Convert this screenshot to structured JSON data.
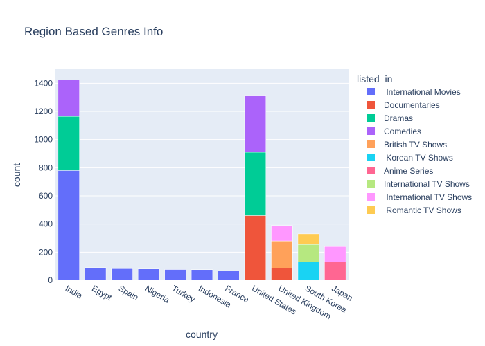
{
  "chart_data": {
    "type": "bar",
    "barmode": "stack",
    "title": "Region Based Genres Info",
    "xlabel": "country",
    "ylabel": "count",
    "ylim": [
      0,
      1500
    ],
    "yticks": [
      0,
      200,
      400,
      600,
      800,
      1000,
      1200,
      1400
    ],
    "grid": true,
    "legend_title": "listed_in",
    "legend_position": "right",
    "categories": [
      "India",
      "Egypt",
      "Spain",
      "Nigeria",
      "Turkey",
      "Indonesia",
      "France",
      "United States",
      "United Kingdom",
      "South Korea",
      "Japan"
    ],
    "series": [
      {
        "name": " International Movies",
        "color": "#636efa",
        "values": [
          780,
          90,
          82,
          80,
          76,
          75,
          68,
          0,
          0,
          0,
          0
        ]
      },
      {
        "name": "Documentaries",
        "color": "#ef553b",
        "values": [
          0,
          0,
          0,
          0,
          0,
          0,
          0,
          460,
          85,
          0,
          0
        ]
      },
      {
        "name": "Dramas",
        "color": "#00cc96",
        "values": [
          385,
          0,
          0,
          0,
          0,
          0,
          0,
          450,
          0,
          0,
          0
        ]
      },
      {
        "name": "Comedies",
        "color": "#ab63fa",
        "values": [
          260,
          0,
          0,
          0,
          0,
          0,
          0,
          400,
          0,
          0,
          0
        ]
      },
      {
        "name": "British TV Shows",
        "color": "#ffa15a",
        "values": [
          0,
          0,
          0,
          0,
          0,
          0,
          0,
          0,
          195,
          0,
          0
        ]
      },
      {
        "name": " Korean TV Shows",
        "color": "#19d3f3",
        "values": [
          0,
          0,
          0,
          0,
          0,
          0,
          0,
          0,
          0,
          130,
          0
        ]
      },
      {
        "name": "Anime Series",
        "color": "#ff6692",
        "values": [
          0,
          0,
          0,
          0,
          0,
          0,
          0,
          0,
          0,
          0,
          130
        ]
      },
      {
        "name": "International TV Shows",
        "color": "#b6e880",
        "values": [
          0,
          0,
          0,
          0,
          0,
          0,
          0,
          0,
          0,
          125,
          0
        ]
      },
      {
        "name": " International TV Shows",
        "color": "#ff97ff",
        "values": [
          0,
          0,
          0,
          0,
          0,
          0,
          0,
          0,
          110,
          0,
          110
        ]
      },
      {
        "name": " Romantic TV Shows",
        "color": "#fecb52",
        "values": [
          0,
          0,
          0,
          0,
          0,
          0,
          0,
          0,
          0,
          75,
          0
        ]
      }
    ]
  }
}
